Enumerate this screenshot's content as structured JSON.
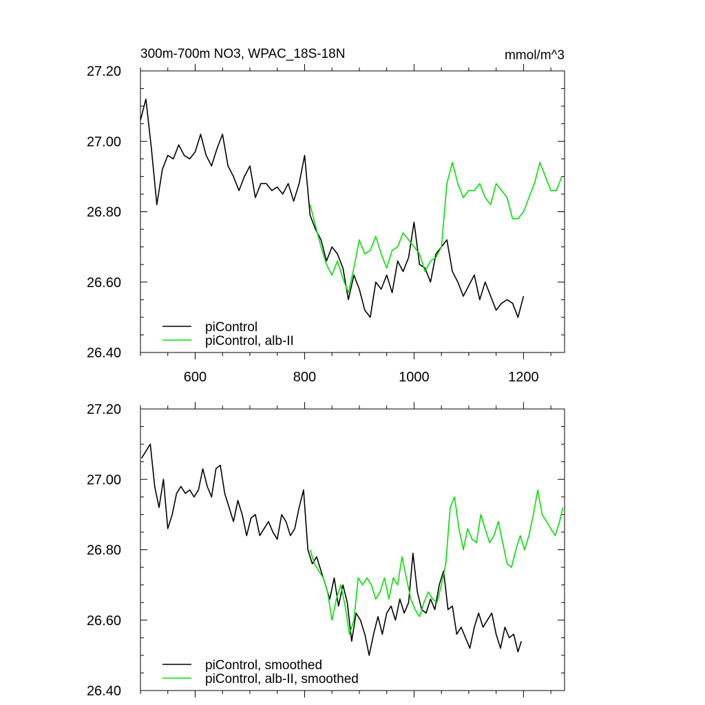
{
  "chart_data": [
    {
      "type": "line",
      "title": "300m-700m NO3, WPAC_18S-18N",
      "units": "mmol/m^3",
      "xlim": [
        500,
        1275
      ],
      "ylim": [
        26.4,
        27.2
      ],
      "x_ticks": [
        600,
        800,
        1000,
        1200
      ],
      "x_tick_labels": [
        "600",
        "800",
        "1000",
        "1200"
      ],
      "y_ticks": [
        26.4,
        26.6,
        26.8,
        27.0,
        27.2
      ],
      "y_tick_labels": [
        "26.40",
        "26.60",
        "26.80",
        "27.00",
        "27.20"
      ],
      "legend_position": "bottom-left",
      "series": [
        {
          "name": "piControl",
          "color": "#000000",
          "x": [
            500,
            510,
            520,
            530,
            540,
            550,
            560,
            570,
            580,
            590,
            600,
            610,
            620,
            630,
            640,
            650,
            660,
            670,
            680,
            690,
            700,
            710,
            720,
            730,
            740,
            750,
            760,
            770,
            780,
            790,
            800,
            810,
            820,
            830,
            840,
            850,
            860,
            870,
            880,
            890,
            900,
            910,
            920,
            930,
            940,
            950,
            960,
            970,
            980,
            990,
            1000,
            1010,
            1020,
            1030,
            1040,
            1050,
            1060,
            1070,
            1080,
            1090,
            1100,
            1110,
            1120,
            1130,
            1140,
            1150,
            1160,
            1170,
            1180,
            1190,
            1200
          ],
          "y": [
            27.06,
            27.12,
            26.98,
            26.82,
            26.92,
            26.96,
            26.95,
            26.99,
            26.96,
            26.95,
            26.97,
            27.02,
            26.96,
            26.93,
            26.98,
            27.02,
            26.93,
            26.9,
            26.86,
            26.9,
            26.93,
            26.84,
            26.88,
            26.88,
            26.86,
            26.87,
            26.85,
            26.88,
            26.83,
            26.88,
            26.96,
            26.79,
            26.75,
            26.72,
            26.66,
            26.7,
            26.68,
            26.64,
            26.55,
            26.62,
            26.58,
            26.52,
            26.5,
            26.6,
            26.58,
            26.62,
            26.57,
            26.66,
            26.63,
            26.67,
            26.77,
            26.65,
            26.64,
            26.6,
            26.68,
            26.7,
            26.72,
            26.63,
            26.6,
            26.56,
            26.59,
            26.62,
            26.55,
            26.6,
            26.56,
            26.52,
            26.54,
            26.55,
            26.54,
            26.5,
            26.56
          ]
        },
        {
          "name": "piControl, alb-II",
          "color": "#00e000",
          "x": [
            810,
            820,
            830,
            840,
            850,
            860,
            870,
            880,
            890,
            900,
            910,
            920,
            930,
            940,
            950,
            960,
            970,
            980,
            990,
            1000,
            1010,
            1020,
            1030,
            1040,
            1050,
            1060,
            1070,
            1080,
            1090,
            1100,
            1110,
            1120,
            1130,
            1140,
            1150,
            1160,
            1170,
            1180,
            1190,
            1200,
            1210,
            1220,
            1230,
            1240,
            1250,
            1260,
            1270
          ],
          "y": [
            26.82,
            26.76,
            26.7,
            26.65,
            26.62,
            26.66,
            26.61,
            26.57,
            26.64,
            26.72,
            26.68,
            26.69,
            26.73,
            26.68,
            26.64,
            26.69,
            26.7,
            26.74,
            26.72,
            26.7,
            26.68,
            26.63,
            26.66,
            26.67,
            26.7,
            26.88,
            26.94,
            26.88,
            26.84,
            26.86,
            26.86,
            26.88,
            26.84,
            26.82,
            26.88,
            26.86,
            26.84,
            26.78,
            26.78,
            26.8,
            26.84,
            26.88,
            26.94,
            26.9,
            26.86,
            26.86,
            26.9
          ]
        }
      ]
    },
    {
      "type": "line",
      "xlim": [
        500,
        1275
      ],
      "ylim": [
        26.4,
        27.2
      ],
      "x_ticks": [
        600,
        800,
        1000,
        1200
      ],
      "y_ticks": [
        26.4,
        26.6,
        26.8,
        27.0,
        27.2
      ],
      "y_tick_labels": [
        "26.40",
        "26.60",
        "26.80",
        "27.00",
        "27.20"
      ],
      "legend_position": "bottom-left",
      "series": [
        {
          "name": "piControl, smoothed",
          "color": "#000000",
          "x": [
            502,
            510,
            518,
            526,
            534,
            542,
            550,
            558,
            566,
            574,
            582,
            590,
            598,
            606,
            614,
            622,
            630,
            638,
            646,
            654,
            662,
            670,
            678,
            686,
            694,
            702,
            710,
            718,
            726,
            734,
            742,
            750,
            758,
            766,
            774,
            782,
            790,
            798,
            806,
            814,
            822,
            830,
            838,
            846,
            854,
            862,
            870,
            878,
            886,
            894,
            902,
            910,
            918,
            926,
            934,
            942,
            950,
            958,
            966,
            974,
            982,
            990,
            998,
            1006,
            1014,
            1022,
            1030,
            1038,
            1046,
            1054,
            1062,
            1070,
            1078,
            1086,
            1094,
            1102,
            1110,
            1118,
            1126,
            1134,
            1142,
            1150,
            1158,
            1166,
            1174,
            1182,
            1190,
            1196
          ],
          "y": [
            27.06,
            27.08,
            27.1,
            26.98,
            26.92,
            27.0,
            26.86,
            26.9,
            26.96,
            26.98,
            26.96,
            26.97,
            26.95,
            26.97,
            27.03,
            26.98,
            26.95,
            27.03,
            27.04,
            26.96,
            26.92,
            26.88,
            26.94,
            26.9,
            26.84,
            26.89,
            26.9,
            26.84,
            26.86,
            26.88,
            26.85,
            26.83,
            26.9,
            26.88,
            26.84,
            26.86,
            26.92,
            26.97,
            26.8,
            26.76,
            26.78,
            26.74,
            26.7,
            26.66,
            26.72,
            26.64,
            26.7,
            26.65,
            26.54,
            26.62,
            26.6,
            26.56,
            26.5,
            26.56,
            26.61,
            26.56,
            26.62,
            26.64,
            26.6,
            26.66,
            26.62,
            26.65,
            26.79,
            26.68,
            26.63,
            26.62,
            26.66,
            26.63,
            26.7,
            26.74,
            26.63,
            26.64,
            26.56,
            26.58,
            26.55,
            26.52,
            26.58,
            26.62,
            26.58,
            26.6,
            26.62,
            26.56,
            26.52,
            26.58,
            26.55,
            26.56,
            26.51,
            26.54
          ]
        },
        {
          "name": "piControl, alb-II, smoothed",
          "color": "#00e000",
          "x": [
            810,
            818,
            826,
            834,
            842,
            850,
            858,
            866,
            874,
            882,
            890,
            898,
            906,
            914,
            922,
            930,
            938,
            946,
            954,
            962,
            970,
            978,
            986,
            994,
            1002,
            1010,
            1018,
            1026,
            1034,
            1042,
            1050,
            1058,
            1066,
            1074,
            1082,
            1090,
            1098,
            1106,
            1114,
            1122,
            1130,
            1138,
            1146,
            1154,
            1162,
            1170,
            1178,
            1186,
            1194,
            1202,
            1210,
            1218,
            1226,
            1234,
            1242,
            1250,
            1258,
            1266,
            1272
          ],
          "y": [
            26.8,
            26.76,
            26.74,
            26.72,
            26.68,
            26.6,
            26.66,
            26.7,
            26.64,
            26.56,
            26.6,
            26.72,
            26.7,
            26.72,
            26.7,
            26.66,
            26.68,
            26.72,
            26.66,
            26.72,
            26.7,
            26.78,
            26.72,
            26.66,
            26.63,
            26.61,
            26.65,
            26.68,
            26.66,
            26.65,
            26.7,
            26.76,
            26.92,
            26.95,
            26.86,
            26.8,
            26.86,
            26.83,
            26.82,
            26.9,
            26.86,
            26.82,
            26.84,
            26.88,
            26.82,
            26.76,
            26.75,
            26.8,
            26.84,
            26.8,
            26.84,
            26.9,
            26.97,
            26.9,
            26.88,
            26.86,
            26.84,
            26.88,
            26.92
          ]
        }
      ]
    }
  ]
}
